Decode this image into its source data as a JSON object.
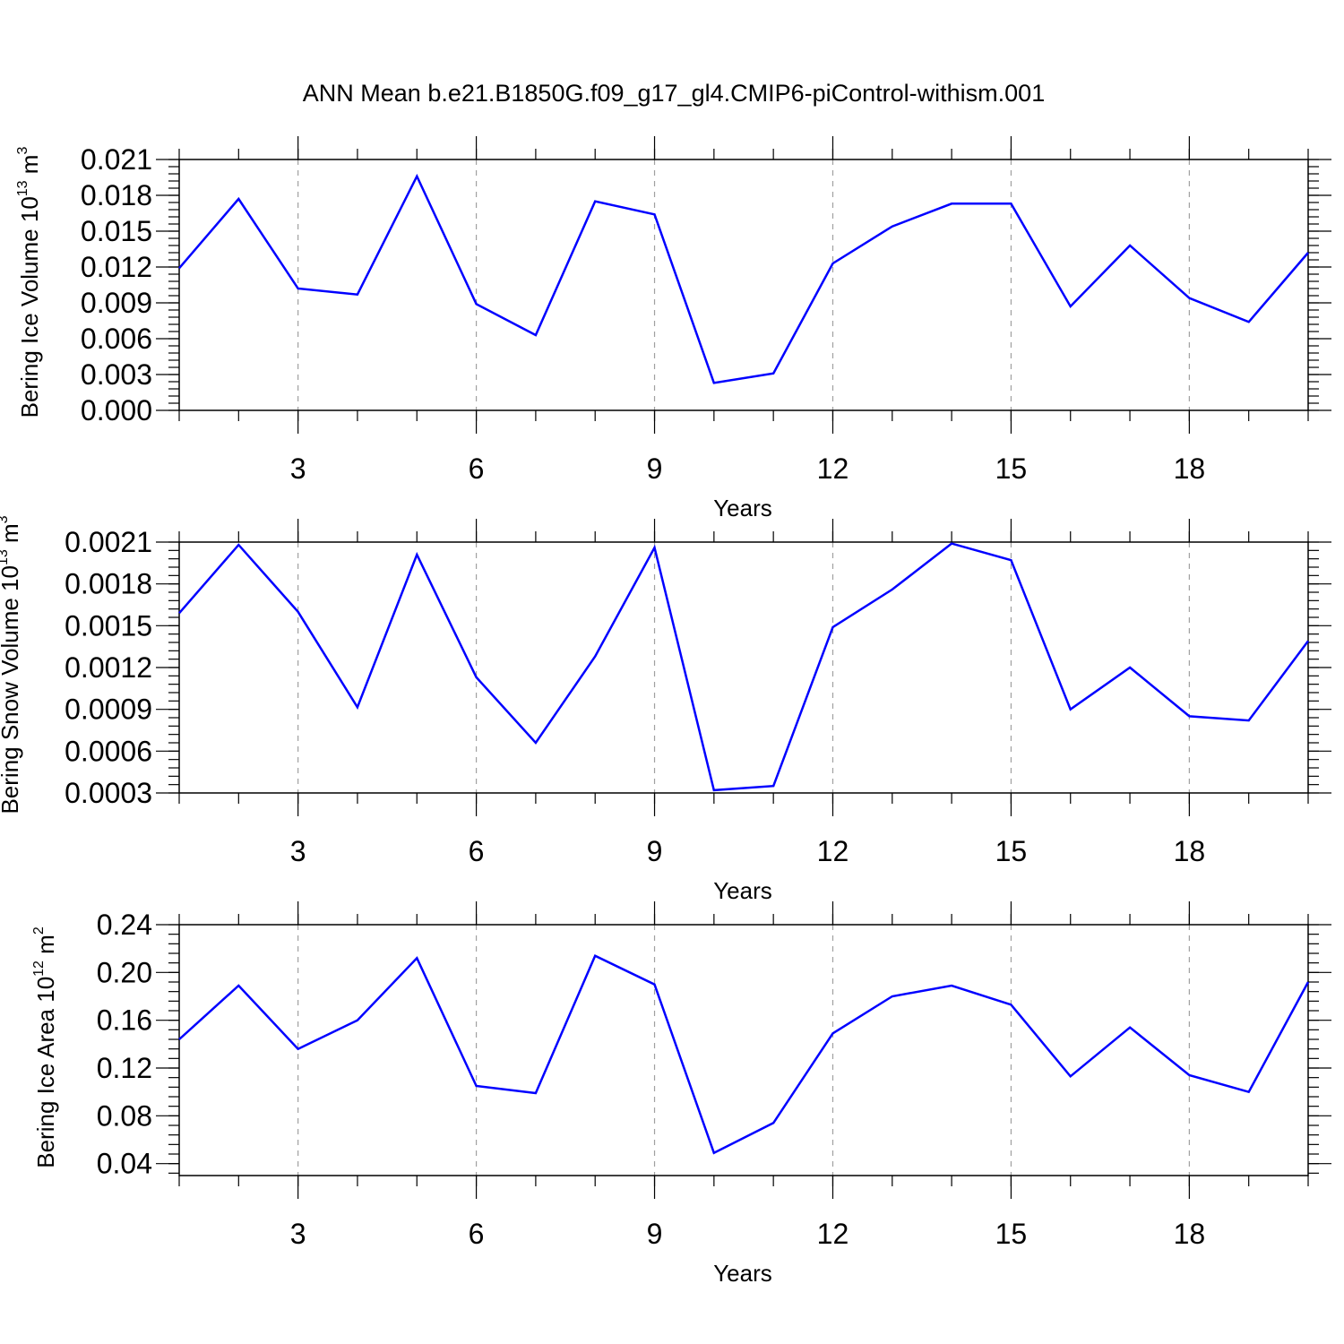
{
  "title": "ANN Mean b.e21.B1850G.f09_g17_gl4.CMIP6-piControl-withism.001",
  "colors": {
    "line": "#0000ff",
    "grid": "#a0a0a0",
    "axes": "#000000"
  },
  "chart_data": [
    {
      "type": "line",
      "xlabel": "Years",
      "ylabel": {
        "text": "Bering Ice Volume 10",
        "exp": "13",
        "unit": " m",
        "unit_exp": "3"
      },
      "xlim": [
        1,
        20
      ],
      "ylim": [
        0.0,
        0.021
      ],
      "xticks": [
        3,
        6,
        9,
        12,
        15,
        18
      ],
      "yticks": [
        0.0,
        0.003,
        0.006,
        0.009,
        0.012,
        0.015,
        0.018,
        0.021
      ],
      "ytick_labels": [
        "0.000",
        "0.003",
        "0.006",
        "0.009",
        "0.012",
        "0.015",
        "0.018",
        "0.021"
      ],
      "grid": "vertical dashed at major x ticks",
      "x": [
        1,
        2,
        3,
        4,
        5,
        6,
        7,
        8,
        9,
        10,
        11,
        12,
        13,
        14,
        15,
        16,
        17,
        18,
        19,
        20
      ],
      "values": [
        0.0119,
        0.0177,
        0.0102,
        0.0097,
        0.0196,
        0.0089,
        0.0063,
        0.0175,
        0.0164,
        0.0023,
        0.0031,
        0.0123,
        0.0154,
        0.0173,
        0.0173,
        0.0087,
        0.0138,
        0.0094,
        0.0074,
        0.0132
      ]
    },
    {
      "type": "line",
      "xlabel": "Years",
      "ylabel": {
        "text": "Bering Snow Volume 10",
        "exp": "13",
        "unit": " m",
        "unit_exp": "3"
      },
      "xlim": [
        1,
        20
      ],
      "ylim": [
        0.0003,
        0.0021
      ],
      "xticks": [
        3,
        6,
        9,
        12,
        15,
        18
      ],
      "yticks": [
        0.0003,
        0.0006,
        0.0009,
        0.0012,
        0.0015,
        0.0018,
        0.0021
      ],
      "ytick_labels": [
        "0.0003",
        "0.0006",
        "0.0009",
        "0.0012",
        "0.0015",
        "0.0018",
        "0.0021"
      ],
      "grid": "vertical dashed at major x ticks",
      "x": [
        1,
        2,
        3,
        4,
        5,
        6,
        7,
        8,
        9,
        10,
        11,
        12,
        13,
        14,
        15,
        16,
        17,
        18,
        19,
        20
      ],
      "values": [
        0.00159,
        0.00208,
        0.0016,
        0.000915,
        0.00201,
        0.00113,
        0.00066,
        0.00128,
        0.00206,
        0.00032,
        0.00035,
        0.00149,
        0.00176,
        0.00209,
        0.00197,
        0.0009,
        0.0012,
        0.00085,
        0.00082,
        0.00139
      ]
    },
    {
      "type": "line",
      "xlabel": "Years",
      "ylabel": {
        "text": "Bering Ice Area 10",
        "exp": "12",
        "unit": " m",
        "unit_exp": "2"
      },
      "xlim": [
        1,
        20
      ],
      "ylim": [
        0.03,
        0.24
      ],
      "xticks": [
        3,
        6,
        9,
        12,
        15,
        18
      ],
      "yticks": [
        0.04,
        0.08,
        0.12,
        0.16,
        0.2,
        0.24
      ],
      "ytick_labels": [
        "0.04",
        "0.08",
        "0.12",
        "0.16",
        "0.20",
        "0.24"
      ],
      "grid": "vertical dashed at major x ticks",
      "x": [
        1,
        2,
        3,
        4,
        5,
        6,
        7,
        8,
        9,
        10,
        11,
        12,
        13,
        14,
        15,
        16,
        17,
        18,
        19,
        20
      ],
      "values": [
        0.144,
        0.189,
        0.136,
        0.16,
        0.212,
        0.105,
        0.099,
        0.214,
        0.19,
        0.049,
        0.074,
        0.149,
        0.18,
        0.189,
        0.173,
        0.113,
        0.154,
        0.114,
        0.1,
        0.192
      ]
    }
  ]
}
